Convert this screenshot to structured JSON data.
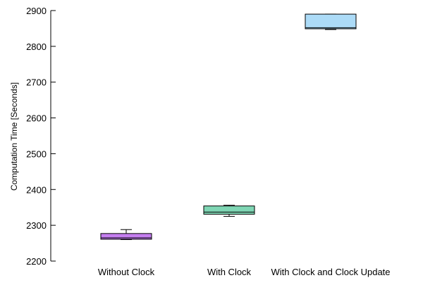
{
  "chart_data": {
    "type": "box",
    "title": "",
    "xlabel": "",
    "ylabel": "Computation Time [Seconds]",
    "ylim": [
      2200,
      2900
    ],
    "yticks": [
      2200,
      2300,
      2400,
      2500,
      2600,
      2700,
      2800,
      2900
    ],
    "grid": false,
    "legend": "none",
    "categories": [
      "Without Clock",
      "With Clock",
      "With Clock and Clock Update"
    ],
    "boxes": [
      {
        "category": "Without Clock",
        "whisker_low": 2260,
        "q1": 2261,
        "median": 2265,
        "q3": 2277,
        "whisker_high": 2288,
        "color": "#c57ef0"
      },
      {
        "category": "With Clock",
        "whisker_low": 2325,
        "q1": 2331,
        "median": 2337,
        "q3": 2354,
        "whisker_high": 2356,
        "color": "#7fd6b4"
      },
      {
        "category": "With Clock and Clock Update",
        "whisker_low": 2847,
        "q1": 2849,
        "median": 2852,
        "q3": 2890,
        "whisker_high": 2890,
        "color": "#acdbf7"
      }
    ]
  }
}
